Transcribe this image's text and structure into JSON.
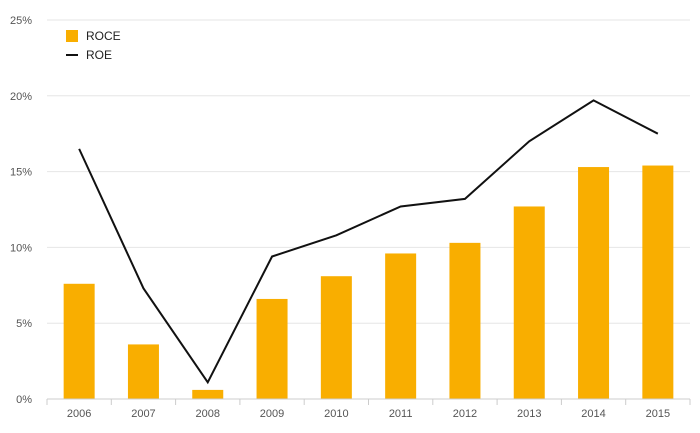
{
  "chart_data": {
    "type": "bar",
    "categories": [
      "2006",
      "2007",
      "2008",
      "2009",
      "2010",
      "2011",
      "2012",
      "2013",
      "2014",
      "2015"
    ],
    "series": [
      {
        "name": "ROCE",
        "type": "bar",
        "color": "#F9AE00",
        "values": [
          7.6,
          3.6,
          0.6,
          6.6,
          8.1,
          9.6,
          10.3,
          12.7,
          15.3,
          15.4
        ]
      },
      {
        "name": "ROE",
        "type": "line",
        "color": "#111111",
        "values": [
          16.5,
          7.3,
          1.1,
          9.4,
          10.8,
          12.7,
          13.2,
          17.0,
          19.7,
          17.5
        ]
      }
    ],
    "y_ticks": [
      "0%",
      "5%",
      "10%",
      "15%",
      "20%",
      "25%"
    ],
    "ylim": [
      0,
      25
    ],
    "y_unit": "%",
    "grid": true,
    "legend_position": "top-left"
  }
}
